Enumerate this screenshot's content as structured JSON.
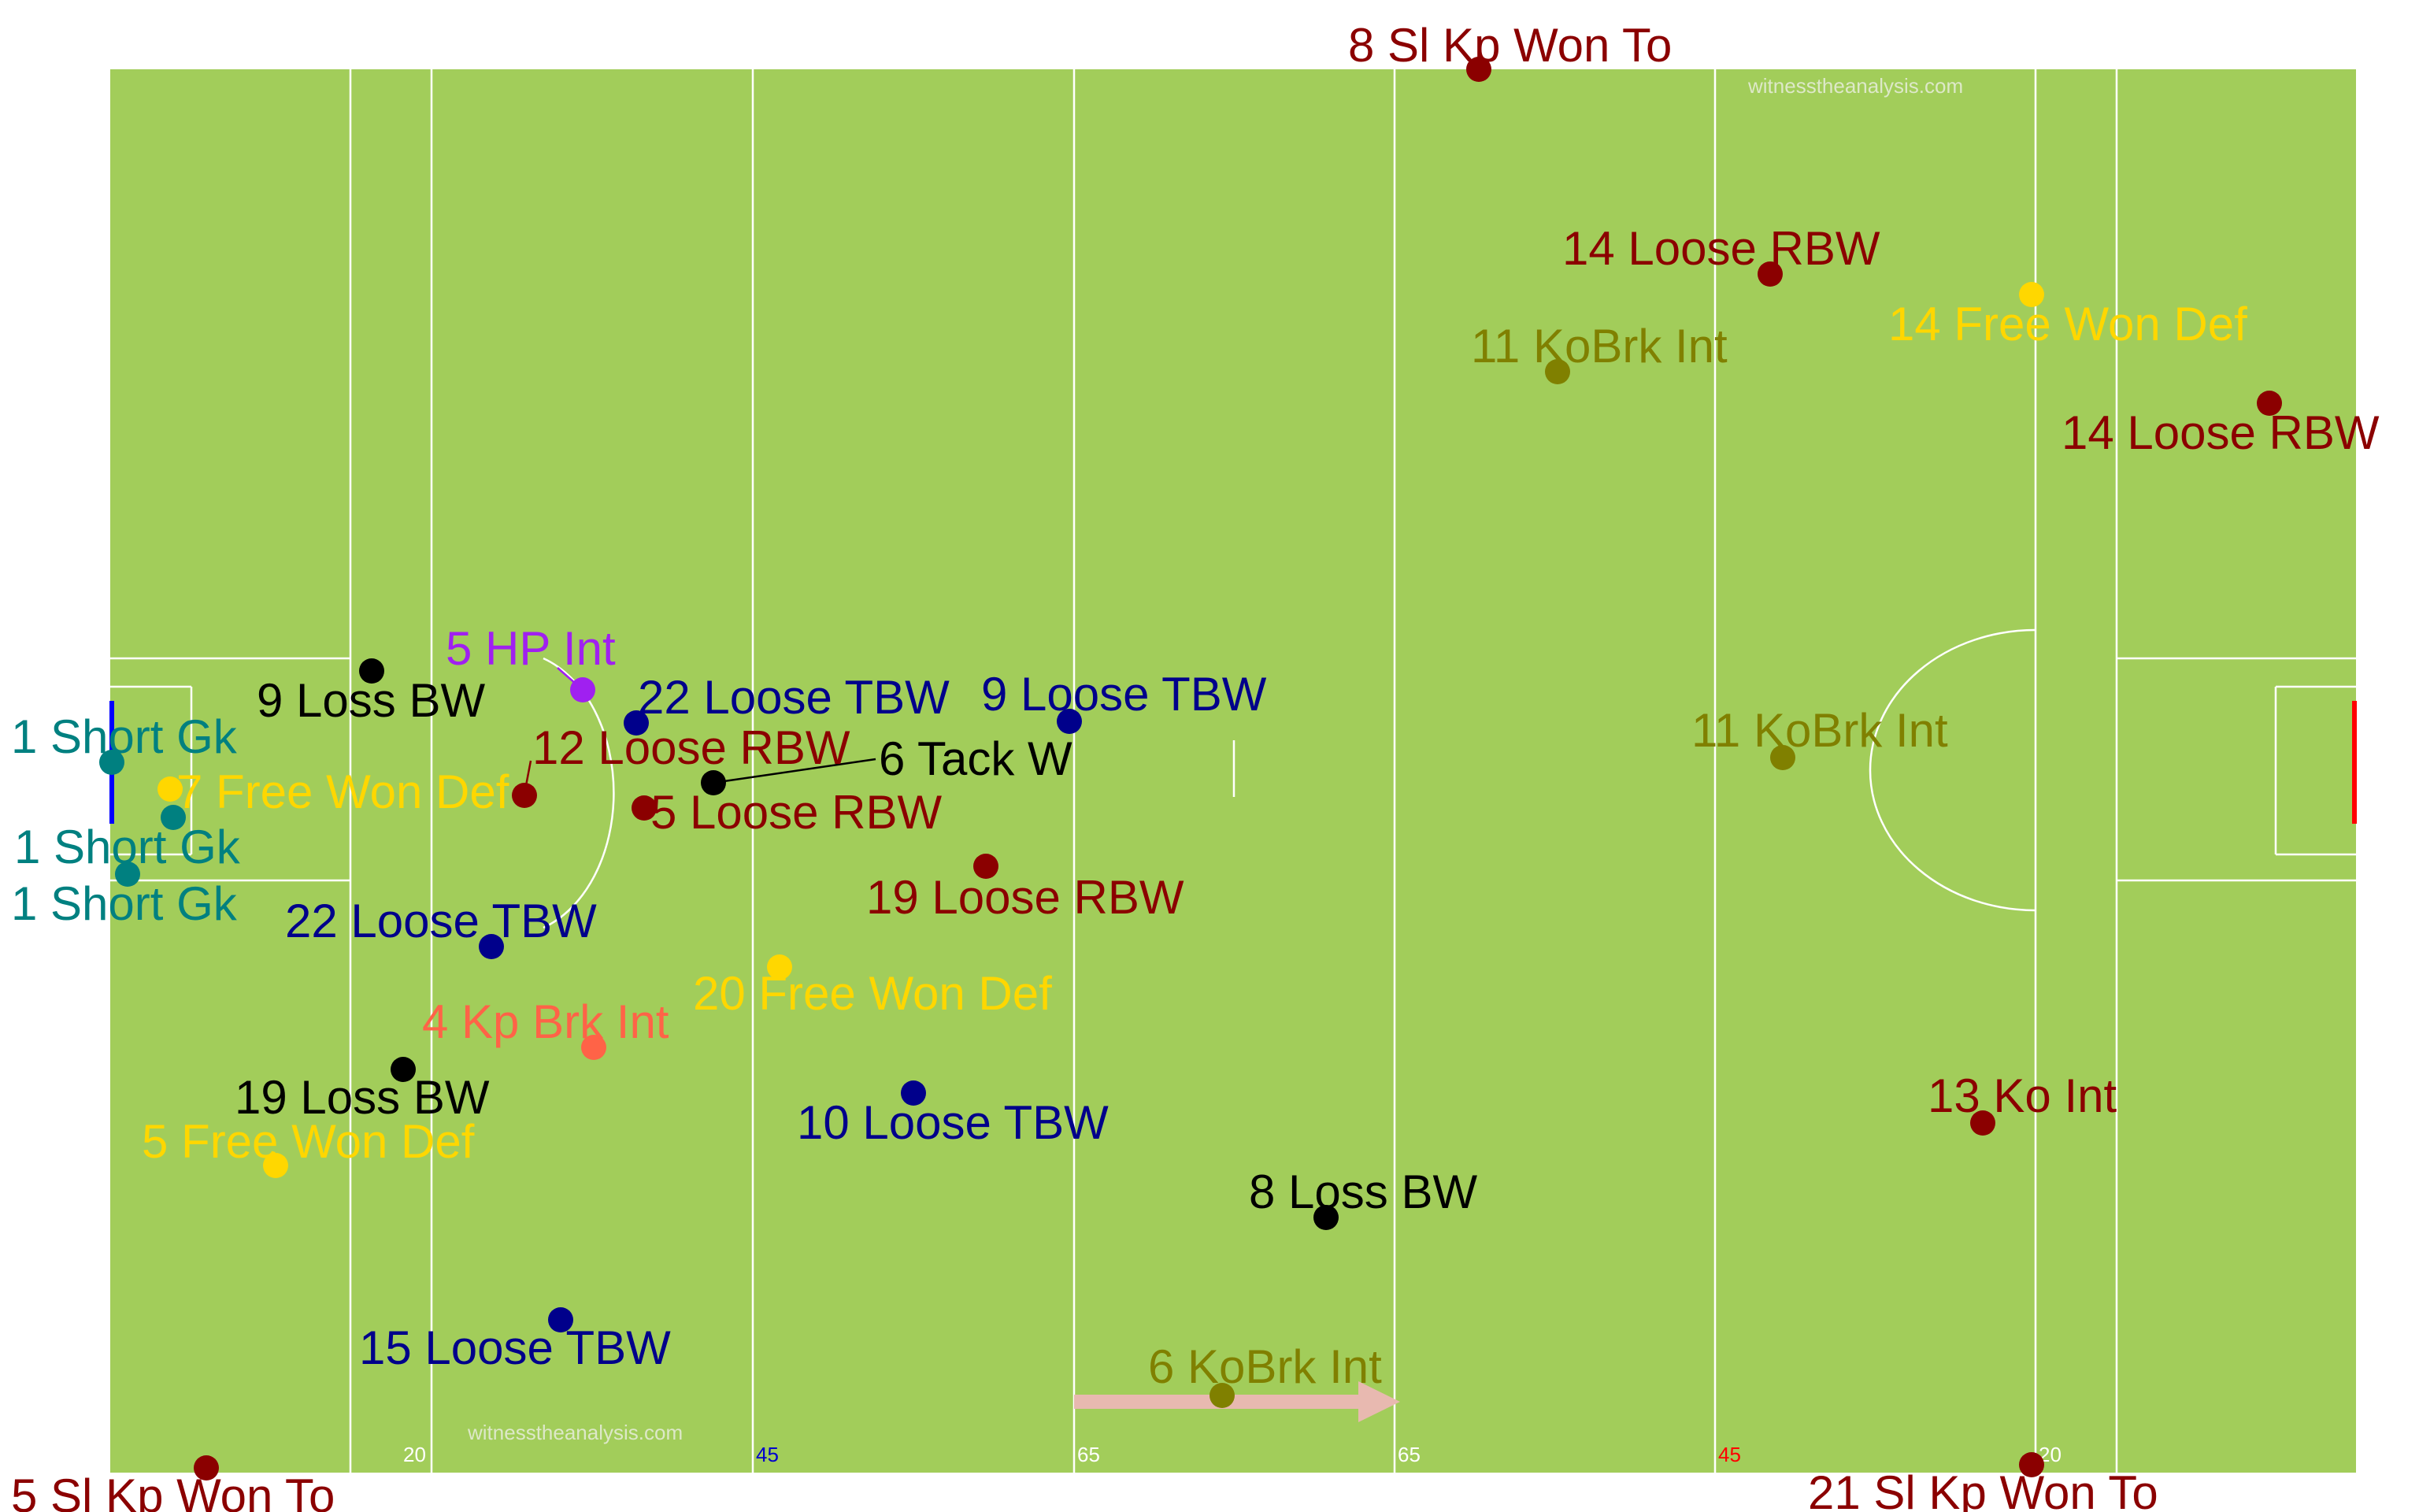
{
  "pitch": {
    "grass_color": "#a2cd5a",
    "line_color": "#ffffff",
    "left_goal_color": "#0000ff",
    "right_goal_color": "#ff0000",
    "direction_arrow_color": "#e8b9b0"
  },
  "watermark": "witnesstheanalysis.com",
  "line_labels": [
    {
      "id": "l20a",
      "text": "20",
      "color": "#ffffff"
    },
    {
      "id": "l45a",
      "text": "45",
      "color": "#0000cd"
    },
    {
      "id": "l65a",
      "text": "65",
      "color": "#ffffff"
    },
    {
      "id": "l65b",
      "text": "65",
      "color": "#ffffff"
    },
    {
      "id": "l45b",
      "text": "45",
      "color": "#ff0000"
    },
    {
      "id": "l20b",
      "text": "20",
      "color": "#ffffff"
    }
  ],
  "event_colors": {
    "Sl Kp Won To": "#8b0000",
    "Loose RBW": "#8b0000",
    "Ko Int": "#8b0000",
    "KoBrk Int": "#808000",
    "Free Won Def": "#ffd700",
    "Short Gk": "#008080",
    "Loss BW": "#000000",
    "Tack W": "#000000",
    "Loose TBW": "#00008b",
    "HP Int": "#a020f0",
    "Kp Brk Int": "#ff6347"
  },
  "events": [
    {
      "label": "8 Sl Kp Won To",
      "type": "Sl Kp Won To"
    },
    {
      "label": "14 Loose RBW",
      "type": "Loose RBW"
    },
    {
      "label": "14 Free Won Def",
      "type": "Free Won Def"
    },
    {
      "label": "11 KoBrk Int",
      "type": "KoBrk Int"
    },
    {
      "label": "14 Loose RBW",
      "type": "Loose RBW"
    },
    {
      "label": "5 HP Int",
      "type": "HP Int"
    },
    {
      "label": "9 Loss BW",
      "type": "Loss BW"
    },
    {
      "label": "22 Loose TBW",
      "type": "Loose TBW"
    },
    {
      "label": "9 Loose TBW",
      "type": "Loose TBW"
    },
    {
      "label": "11 KoBrk Int",
      "type": "KoBrk Int"
    },
    {
      "label": "1 Short Gk",
      "type": "Short Gk"
    },
    {
      "label": "12 Loose RBW",
      "type": "Loose RBW"
    },
    {
      "label": "6 Tack W",
      "type": "Tack W"
    },
    {
      "label": "7 Free Won Def",
      "type": "Free Won Def"
    },
    {
      "label": "5 Loose RBW",
      "type": "Loose RBW"
    },
    {
      "label": "1 Short Gk",
      "type": "Short Gk"
    },
    {
      "label": "1 Short Gk",
      "type": "Short Gk"
    },
    {
      "label": "19 Loose RBW",
      "type": "Loose RBW"
    },
    {
      "label": "22 Loose TBW",
      "type": "Loose TBW"
    },
    {
      "label": "20 Free Won Def",
      "type": "Free Won Def"
    },
    {
      "label": "4 Kp Brk Int",
      "type": "Kp Brk Int"
    },
    {
      "label": "19 Loss BW",
      "type": "Loss BW"
    },
    {
      "label": "13 Ko Int",
      "type": "Ko Int"
    },
    {
      "label": "10 Loose TBW",
      "type": "Loose TBW"
    },
    {
      "label": "5 Free Won Def",
      "type": "Free Won Def"
    },
    {
      "label": "8 Loss BW",
      "type": "Loss BW"
    },
    {
      "label": "15 Loose TBW",
      "type": "Loose TBW"
    },
    {
      "label": "6 KoBrk Int",
      "type": "KoBrk Int"
    },
    {
      "label": "5 Sl Kp Won To",
      "type": "Sl Kp Won To"
    },
    {
      "label": "21 Sl Kp Won To",
      "type": "Sl Kp Won To"
    }
  ]
}
